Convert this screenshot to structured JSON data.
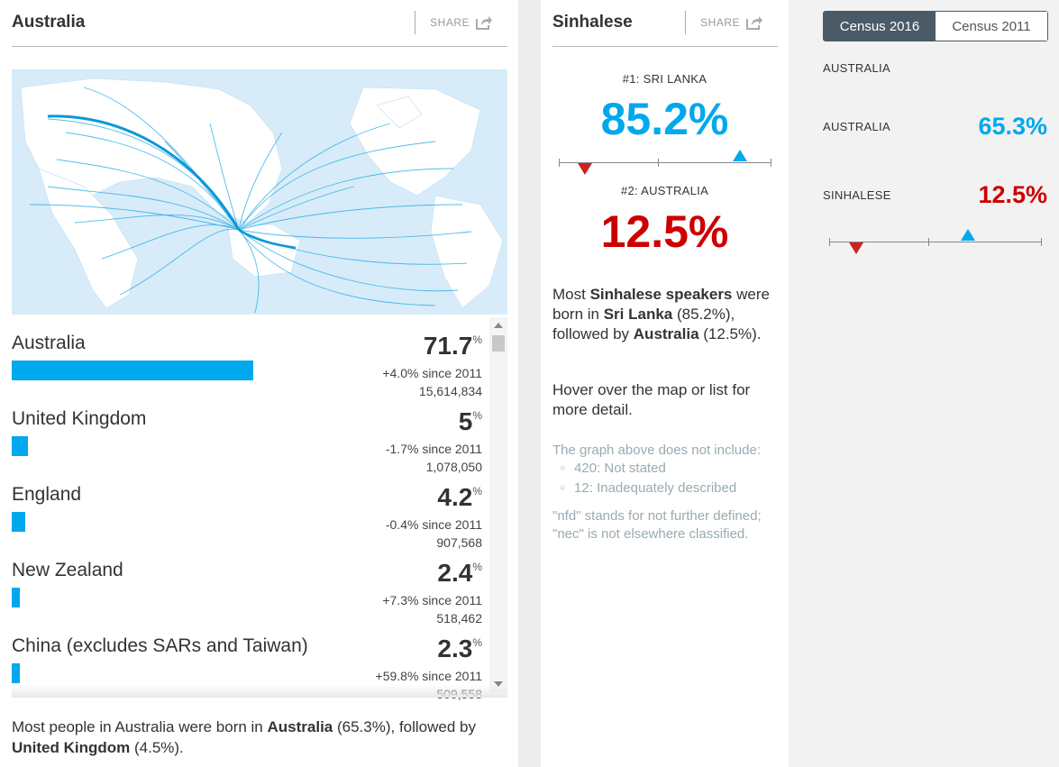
{
  "left_panel": {
    "title": "Australia",
    "share_label": "SHARE",
    "rows": [
      {
        "name": "Australia",
        "pct": "71.7",
        "pct_sign": "%",
        "since": "+4.0% since 2011",
        "count": "15,614,834",
        "bar_fraction": 0.717
      },
      {
        "name": "United Kingdom",
        "pct": "5",
        "pct_sign": "%",
        "since": "-1.7% since 2011",
        "count": "1,078,050",
        "bar_fraction": 0.05
      },
      {
        "name": "England",
        "pct": "4.2",
        "pct_sign": "%",
        "since": "-0.4% since 2011",
        "count": "907,568",
        "bar_fraction": 0.042
      },
      {
        "name": "New Zealand",
        "pct": "2.4",
        "pct_sign": "%",
        "since": "+7.3% since 2011",
        "count": "518,462",
        "bar_fraction": 0.024
      },
      {
        "name": "China (excludes SARs and Taiwan)",
        "pct": "2.3",
        "pct_sign": "%",
        "since": "+59.8% since 2011",
        "count": "509,558",
        "bar_fraction": 0.023
      }
    ],
    "summary": {
      "p1": "Most people in Australia were born in ",
      "b1": "Australia",
      "p2": " (65.3%), followed by ",
      "b2": "United Kingdom",
      "p3": " (4.5%)."
    }
  },
  "mid_panel": {
    "title": "Sinhalese",
    "share_label": "SHARE",
    "rank1_label": "#1: SRI LANKA",
    "rank1_value": "85.2%",
    "rank2_label": "#2: AUSTRALIA",
    "rank2_value": "12.5%",
    "description": {
      "p1": "Most ",
      "b1": "Sinhalese speakers",
      "p2": " were born in ",
      "b2": "Sri Lanka",
      "p3": " (85.2%), followed by ",
      "b3": "Australia",
      "p4": " (12.5%)."
    },
    "hover_hint": "Hover over the map or list for more detail.",
    "note_heading": "The graph above does not include:",
    "note_items": [
      "420: Not stated",
      "12: Inadequately described"
    ],
    "nfd_note": "\"nfd\" stands for not further defined; \"nec\" is not elsewhere classified."
  },
  "right_panel": {
    "toggle": {
      "active": "Census 2016",
      "inactive": "Census 2011"
    },
    "heading": "AUSTRALIA",
    "rows": [
      {
        "label": "AUSTRALIA",
        "value": "65.3%"
      },
      {
        "label": "SINHALESE",
        "value": "12.5%"
      }
    ]
  },
  "colors": {
    "accent_blue": "#00a8ec",
    "accent_red": "#cc0000",
    "toggle_dark": "#4a5a66",
    "note_gray": "#9aaab2"
  }
}
